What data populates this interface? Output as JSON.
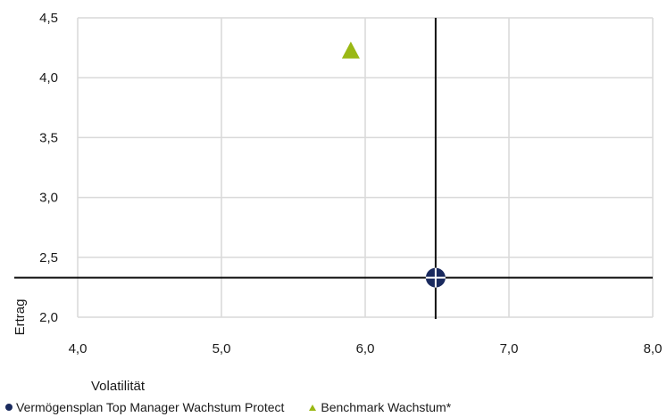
{
  "chart_data": {
    "type": "scatter",
    "xlabel": "Volatilität",
    "ylabel": "Ertrag",
    "xlim": [
      4.0,
      8.0
    ],
    "ylim": [
      2.0,
      4.5
    ],
    "x_ticks": [
      "4,0",
      "5,0",
      "6,0",
      "7,0",
      "8,0"
    ],
    "y_ticks": [
      "2,0",
      "2,5",
      "3,0",
      "3,5",
      "4,0",
      "4,5"
    ],
    "grid": true,
    "legend_position": "bottom-left",
    "series": [
      {
        "name": "Vermögensplan Top Manager Wachstum Protect",
        "marker": "circle-cross",
        "color": "#1a2a5e",
        "x": [
          6.49
        ],
        "y": [
          2.33
        ]
      },
      {
        "name": "Benchmark Wachstum*",
        "marker": "triangle",
        "color": "#9ab814",
        "x": [
          5.9
        ],
        "y": [
          4.22
        ]
      }
    ],
    "reference_lines": {
      "x": 6.49,
      "y": 2.33
    }
  }
}
